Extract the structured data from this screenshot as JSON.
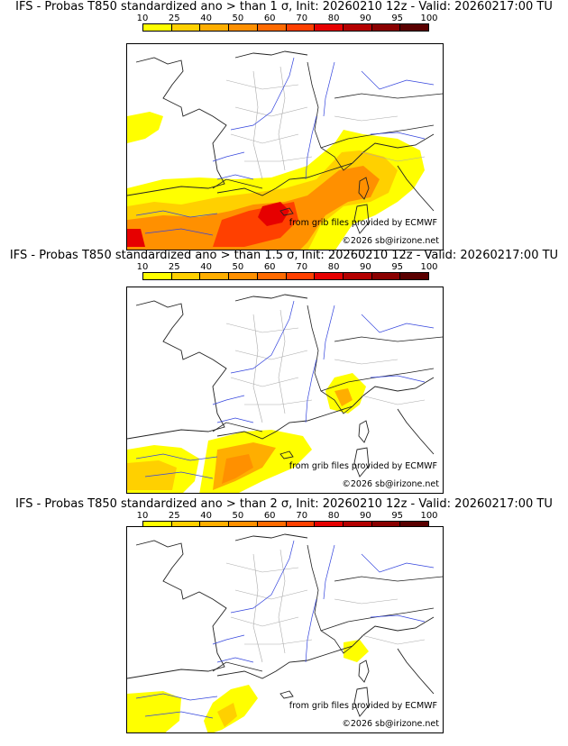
{
  "colorbar": {
    "ticks": [
      "10",
      "25",
      "40",
      "50",
      "60",
      "70",
      "80",
      "90",
      "95",
      "100"
    ],
    "colors": [
      "#ffff00",
      "#ffd000",
      "#ffae00",
      "#ff9000",
      "#ff6a00",
      "#ff4000",
      "#e60000",
      "#b40000",
      "#8a0000",
      "#5a0000"
    ]
  },
  "panels": [
    {
      "title": "IFS - Probas T850  standardized ano > than 1 σ, Init: 20260210 12z - Valid: 20260217:00 TU",
      "source": "from grib files provided by ECMWF",
      "copyright": "©2026 sb@irizone.net"
    },
    {
      "title": "IFS - Probas T850  standardized ano > than 1.5 σ, Init: 20260210 12z - Valid: 20260217:00 TU",
      "source": "from grib files provided by ECMWF",
      "copyright": "©2026 sb@irizone.net"
    },
    {
      "title": "IFS - Probas T850  standardized ano > than 2 σ, Init: 20260210 12z - Valid: 20260217:00 TU",
      "source": "from grib files provided by ECMWF",
      "copyright": "©2026 sb@irizone.net"
    }
  ]
}
